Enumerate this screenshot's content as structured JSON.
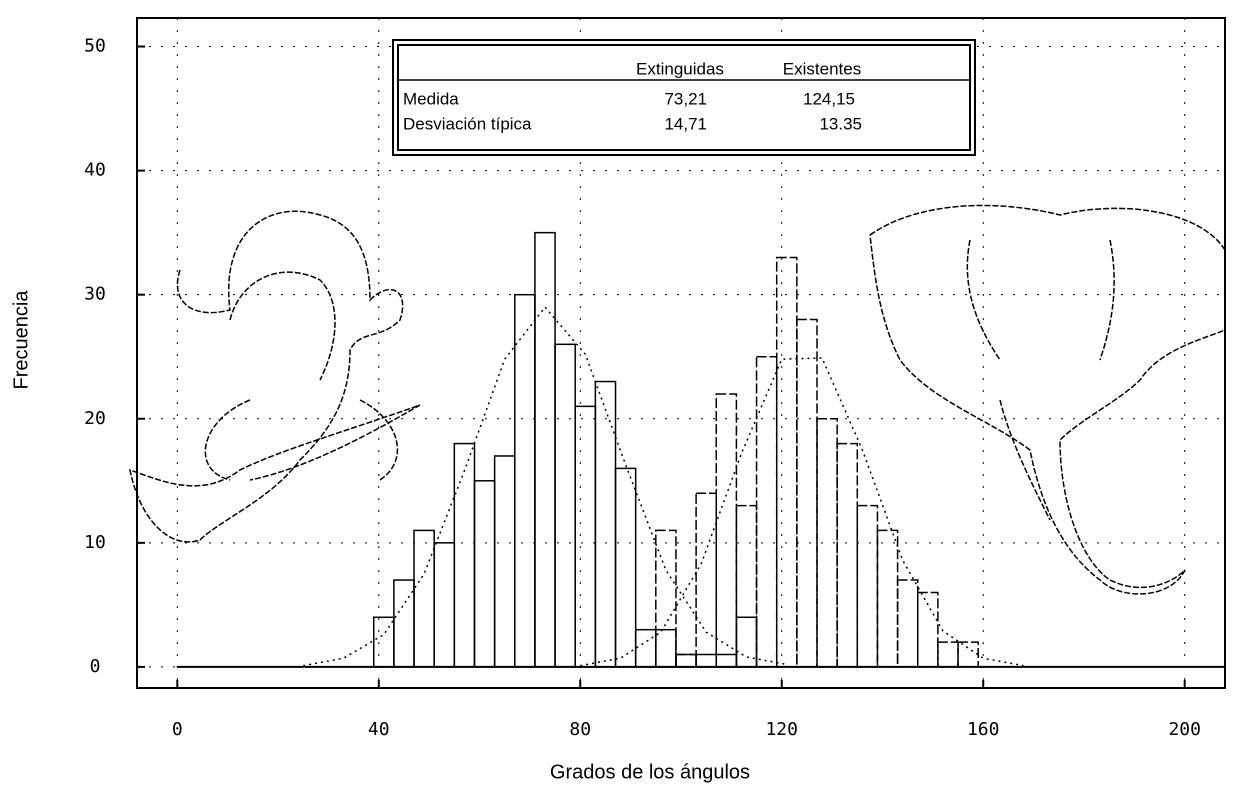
{
  "chart_data": {
    "type": "histogram",
    "xlabel": "Grados de los ángulos",
    "ylabel": "Frecuencia",
    "xlim": [
      -8,
      208
    ],
    "ylim": [
      -1.7,
      52.3
    ],
    "xticks": [
      0,
      40,
      80,
      120,
      160,
      200
    ],
    "yticks": [
      0,
      10,
      20,
      30,
      40,
      50
    ],
    "grid": true,
    "series": [
      {
        "name": "Extinguidas",
        "color": "#000000",
        "bins": [
          39,
          43,
          47,
          51,
          55,
          59,
          63,
          67,
          71,
          75,
          79,
          83,
          87,
          91,
          95,
          99,
          103,
          107,
          111,
          115
        ],
        "values": [
          4,
          7,
          11,
          10,
          18,
          15,
          17,
          30,
          35,
          26,
          21,
          23,
          16,
          3,
          3,
          1,
          1,
          1,
          4
        ]
      },
      {
        "name": "Existentes",
        "color": "#000000",
        "bins": [
          95,
          99,
          103,
          107,
          111,
          115,
          119,
          123,
          127,
          131,
          135,
          139,
          143,
          147,
          151,
          155,
          159
        ],
        "values": [
          11,
          1,
          14,
          22,
          13,
          25,
          33,
          28,
          20,
          18,
          13,
          11,
          7,
          6,
          2,
          2
        ]
      }
    ],
    "curves": [
      {
        "color": "#000000",
        "x": [
          25,
          33,
          41,
          49,
          57,
          65,
          73,
          81,
          89,
          97,
          105,
          113,
          121
        ],
        "values": [
          0.1,
          0.7,
          2.6,
          7.5,
          15.8,
          24.8,
          29,
          25.2,
          16.3,
          7.8,
          2.8,
          0.8,
          0.2
        ]
      },
      {
        "color": "#000000",
        "x": [
          80,
          88,
          96,
          104,
          112,
          120,
          128,
          136,
          144,
          152,
          160,
          168
        ],
        "values": [
          0.1,
          0.7,
          2.8,
          8.3,
          17.2,
          24.8,
          24.9,
          17.5,
          8.6,
          2.9,
          0.7,
          0.1
        ]
      }
    ],
    "stats_table": {
      "columns": [
        "Extinguidas",
        "Existentes"
      ],
      "rows": [
        {
          "label": "Medida",
          "values": [
            "73,21",
            "124,15"
          ]
        },
        {
          "label": "Desviación típica",
          "values": [
            "14,71",
            "13.35"
          ]
        }
      ]
    }
  }
}
